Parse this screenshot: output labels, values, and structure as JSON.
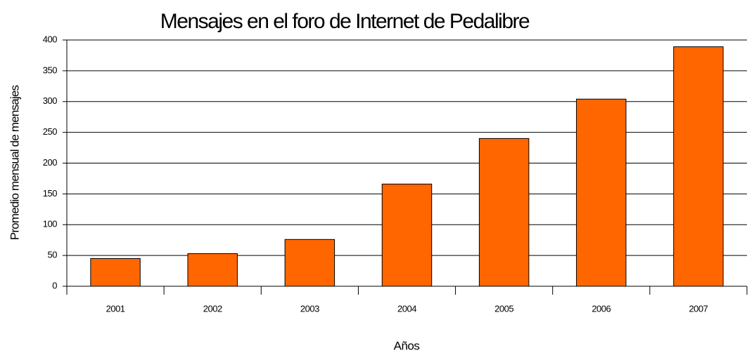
{
  "chart_data": {
    "type": "bar",
    "title": "Mensajes en el foro de Internet de Pedalibre",
    "x_label": "Años",
    "y_label": "Promedio mensual de mensajes",
    "categories": [
      "2001",
      "2002",
      "2003",
      "2004",
      "2005",
      "2006",
      "2007"
    ],
    "values": [
      45,
      53,
      76,
      166,
      240,
      304,
      389
    ],
    "color": "#ff6600",
    "ylim": [
      0,
      400
    ],
    "yticks": [
      0,
      50,
      100,
      150,
      200,
      250,
      300,
      350,
      400
    ],
    "grid": true
  }
}
